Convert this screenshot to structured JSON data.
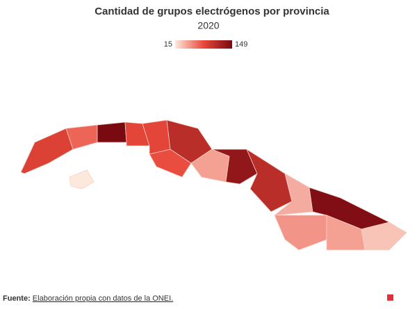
{
  "chart_data": {
    "type": "choropleth",
    "title": "Cantidad de grupos electrógenos por provincia",
    "subtitle": "2020",
    "scale": {
      "min": 15,
      "max": 149,
      "colors": [
        "#fde8dc",
        "#e8483a",
        "#7a0a12"
      ]
    },
    "values": [
      90,
      70,
      149,
      85,
      85,
      15,
      110,
      80,
      45,
      135,
      110,
      40,
      145,
      50,
      45,
      30
    ]
  },
  "footer": {
    "label": "Fuente:",
    "text": "Elaboración propia con datos de la ONEI."
  }
}
